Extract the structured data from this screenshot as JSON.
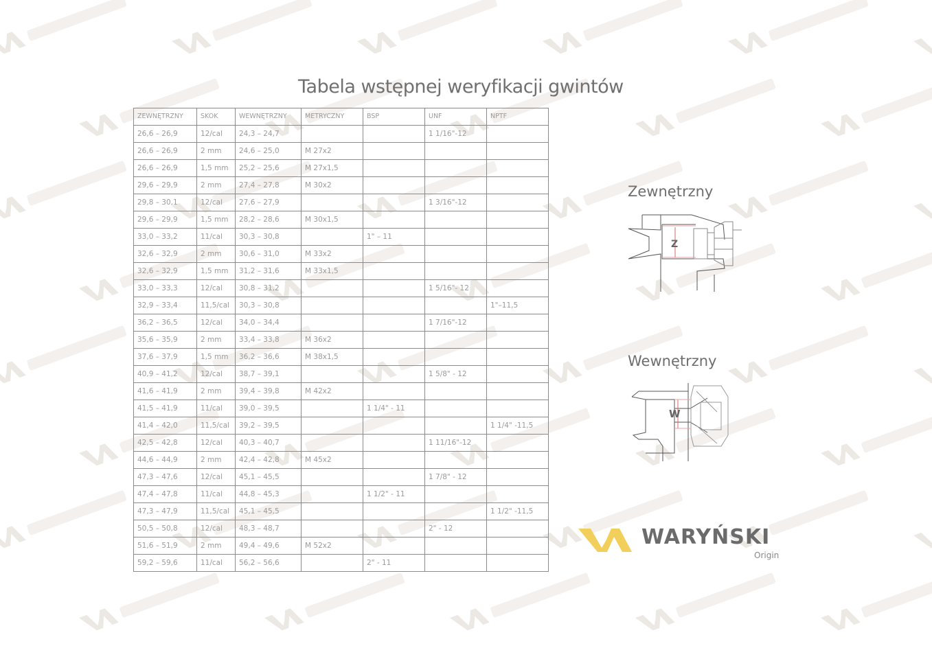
{
  "title": "Tabela wstępnej weryfikacji gwintów",
  "table": {
    "headers": [
      "ZEWNĘTRZNY",
      "SKOK",
      "WEWNĘTRZNY",
      "METRYCZNY",
      "BSP",
      "UNF",
      "NPTF"
    ],
    "rows": [
      [
        "26,6 – 26,9",
        "12/cal",
        "24,3 – 24,7",
        "",
        "",
        "1 1/16\"-12",
        ""
      ],
      [
        "26,6 – 26,9",
        "2 mm",
        "24,6 – 25,0",
        "M 27x2",
        "",
        "",
        ""
      ],
      [
        "26,6 – 26,9",
        "1,5 mm",
        "25,2 – 25,6",
        "M 27x1,5",
        "",
        "",
        ""
      ],
      [
        "29,6 – 29,9",
        "2 mm",
        "27,4 – 27,8",
        "M 30x2",
        "",
        "",
        ""
      ],
      [
        "29,8 – 30,1",
        "12/cal",
        "27,6 – 27,9",
        "",
        "",
        "1 3/16\"-12",
        ""
      ],
      [
        "29,6 – 29,9",
        "1,5 mm",
        "28,2 – 28,6",
        "M 30x1,5",
        "",
        "",
        ""
      ],
      [
        "33,0 – 33,2",
        "11/cal",
        "30,3 – 30,8",
        "",
        "1\" – 11",
        "",
        ""
      ],
      [
        "32,6 – 32,9",
        "2 mm",
        "30,6 – 31,0",
        "M 33x2",
        "",
        "",
        ""
      ],
      [
        "32,6 – 32,9",
        "1,5 mm",
        "31,2 – 31,6",
        "M 33x1,5",
        "",
        "",
        ""
      ],
      [
        "33,0 – 33,3",
        "12/cal",
        "30,8 – 31,2",
        "",
        "",
        "1 5/16\"- 12",
        ""
      ],
      [
        "32,9 – 33,4",
        "11,5/cal",
        "30,3 – 30,8",
        "",
        "",
        "",
        "1\"–11,5"
      ],
      [
        "36,2 – 36,5",
        "12/cal",
        "34,0 – 34,4",
        "",
        "",
        "1 7/16\"-12",
        ""
      ],
      [
        "35,6 – 35,9",
        "2 mm",
        "33,4 – 33,8",
        "M 36x2",
        "",
        "",
        ""
      ],
      [
        "37,6 – 37,9",
        "1,5 mm",
        "36,2 – 36,6",
        "M 38x1,5",
        "",
        "",
        ""
      ],
      [
        "40,9 – 41,2",
        "12/cal",
        "38,7 – 39,1",
        "",
        "",
        "1 5/8\" - 12",
        ""
      ],
      [
        "41,6 – 41,9",
        "2 mm",
        "39,4 – 39,8",
        "M 42x2",
        "",
        "",
        ""
      ],
      [
        "41,5 – 41,9",
        "11/cal",
        "39,0 – 39,5",
        "",
        "1 1/4\" - 11",
        "",
        ""
      ],
      [
        "41,4 – 42,0",
        "11,5/cal",
        "39,2 – 39,5",
        "",
        "",
        "",
        "1 1/4\" -11,5"
      ],
      [
        "42,5 – 42,8",
        "12/cal",
        "40,3 – 40,7",
        "",
        "",
        "1 11/16\"-12",
        ""
      ],
      [
        "44,6 – 44,9",
        "2 mm",
        "42,4 – 42,8",
        "M 45x2",
        "",
        "",
        ""
      ],
      [
        "47,3 – 47,6",
        "12/cal",
        "45,1 – 45,5",
        "",
        "",
        "1 7/8\" - 12",
        ""
      ],
      [
        "47,4 – 47,8",
        "11/cal",
        "44,8 – 45,3",
        "",
        "1 1/2\" - 11",
        "",
        ""
      ],
      [
        "47,3 – 47,9",
        "11,5/cal",
        "45,1 – 45,5",
        "",
        "",
        "",
        "1 1/2\" -11,5"
      ],
      [
        "50,5 – 50,8",
        "12/cal",
        "48,3 – 48,7",
        "",
        "",
        "2\" - 12",
        ""
      ],
      [
        "51,6 – 51,9",
        "2 mm",
        "49,4 – 49,6",
        "M 52x2",
        "",
        "",
        ""
      ],
      [
        "59,2 – 59,6",
        "11/cal",
        "56,2 – 56,6",
        "",
        "2\" - 11",
        "",
        ""
      ]
    ]
  },
  "diagrams": {
    "external": {
      "label": "Zewnętrzny",
      "marker": "Z"
    },
    "internal": {
      "label": "Wewnętrzny",
      "marker": "W"
    }
  },
  "logo": {
    "name": "WARYŃSKI",
    "sub": "Origin",
    "accent": "#f2cf5b",
    "text_color": "#6b6b6b"
  },
  "watermark": {
    "name": "WARYŃSKI",
    "sub": "Origin"
  }
}
